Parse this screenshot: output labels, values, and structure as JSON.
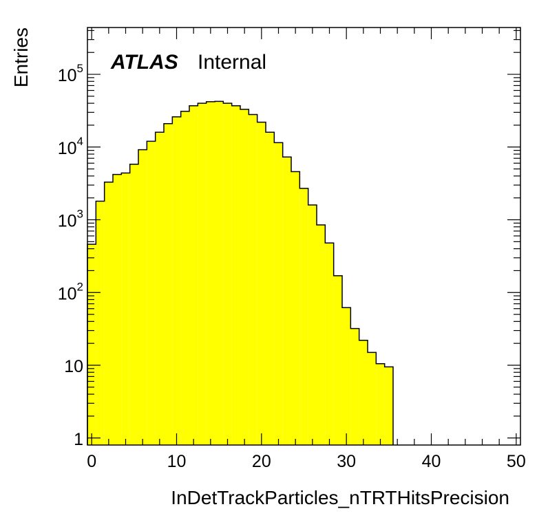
{
  "chart_data": {
    "type": "bar",
    "xlabel": "InDetTrackParticles_nTRTHitsPrecision",
    "ylabel": "Entries",
    "xlim": [
      -0.5,
      50.5
    ],
    "ylim": [
      0.8,
      440000
    ],
    "yscale": "log",
    "fill_color": "#ffff00",
    "edge_color": "#000000",
    "x_ticks": [
      "0",
      "10",
      "20",
      "30",
      "40",
      "50"
    ],
    "y_ticks": [
      {
        "base": "1",
        "exp": ""
      },
      {
        "base": "10",
        "exp": ""
      },
      {
        "base": "10",
        "exp": "2"
      },
      {
        "base": "10",
        "exp": "3"
      },
      {
        "base": "10",
        "exp": "4"
      },
      {
        "base": "10",
        "exp": "5"
      }
    ],
    "bins": {
      "low_edges": [
        -0.5,
        0.5,
        1.5,
        2.5,
        3.5,
        4.5,
        5.5,
        6.5,
        7.5,
        8.5,
        9.5,
        10.5,
        11.5,
        12.5,
        13.5,
        14.5,
        15.5,
        16.5,
        17.5,
        18.5,
        19.5,
        20.5,
        21.5,
        22.5,
        23.5,
        24.5,
        25.5,
        26.5,
        27.5,
        28.5,
        29.5,
        30.5,
        31.5,
        32.5,
        33.5,
        34.5
      ],
      "high_edge": 35.5,
      "values": [
        460,
        1800,
        3300,
        4200,
        4400,
        5800,
        9200,
        12000,
        16000,
        21000,
        26000,
        31000,
        37000,
        40000,
        42000,
        42500,
        40000,
        37000,
        33000,
        28000,
        22000,
        16000,
        11500,
        7300,
        4600,
        2700,
        1600,
        850,
        480,
        170,
        62,
        32,
        22,
        15,
        10.5,
        9.5
      ]
    },
    "label": {
      "experiment": "ATLAS",
      "status": "Internal"
    }
  }
}
